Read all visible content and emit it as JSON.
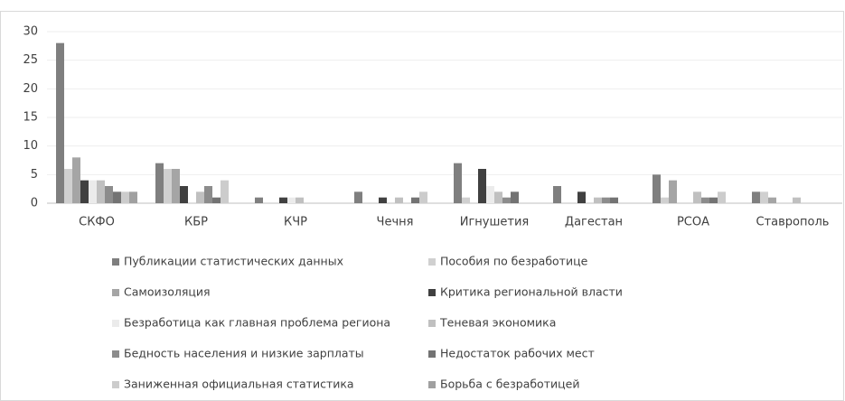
{
  "chart_data": {
    "type": "bar",
    "categories": [
      "СКФО",
      "КБР",
      "КЧР",
      "Чечня",
      "Игнушетия",
      "Дагестан",
      "РСОА",
      "Ставрополь"
    ],
    "ylim": [
      0,
      30
    ],
    "yticks": [
      0,
      5,
      10,
      15,
      20,
      25,
      30
    ],
    "grid": true,
    "legend": "bottom",
    "series": [
      {
        "name": "Публикации статистических данных",
        "color": "#7f7f7f",
        "values": [
          28,
          7,
          1,
          2,
          7,
          3,
          5,
          2
        ]
      },
      {
        "name": "Пособия по безработице",
        "color": "#d0d0d0",
        "values": [
          6,
          6,
          0,
          0,
          1,
          0,
          1,
          2
        ]
      },
      {
        "name": "Самоизоляция",
        "color": "#a5a5a5",
        "values": [
          8,
          6,
          0,
          0,
          0,
          0,
          4,
          1
        ]
      },
      {
        "name": "Критика региональной власти",
        "color": "#404040",
        "values": [
          4,
          3,
          1,
          1,
          6,
          2,
          0,
          0
        ]
      },
      {
        "name": "Безработица как главная проблема региона",
        "color": "#ebebeb",
        "values": [
          4,
          0,
          1,
          0,
          3,
          0,
          0,
          0
        ]
      },
      {
        "name": "Теневая экономика",
        "color": "#c0c0c0",
        "values": [
          4,
          2,
          1,
          1,
          2,
          1,
          2,
          1
        ]
      },
      {
        "name": "Бедность населения и низкие зарплаты",
        "color": "#8c8c8c",
        "values": [
          3,
          3,
          0,
          0,
          1,
          1,
          1,
          0
        ]
      },
      {
        "name": "Недостаток рабочих мест",
        "color": "#737373",
        "values": [
          2,
          1,
          0,
          1,
          2,
          1,
          1,
          0
        ]
      },
      {
        "name": "Заниженная официальная статистика",
        "color": "#cccccc",
        "values": [
          2,
          4,
          0,
          2,
          0,
          0,
          2,
          0
        ]
      },
      {
        "name": "Борьба с безработицей",
        "color": "#a0a0a0",
        "values": [
          2,
          0,
          0,
          0,
          0,
          0,
          0,
          0
        ]
      }
    ]
  }
}
